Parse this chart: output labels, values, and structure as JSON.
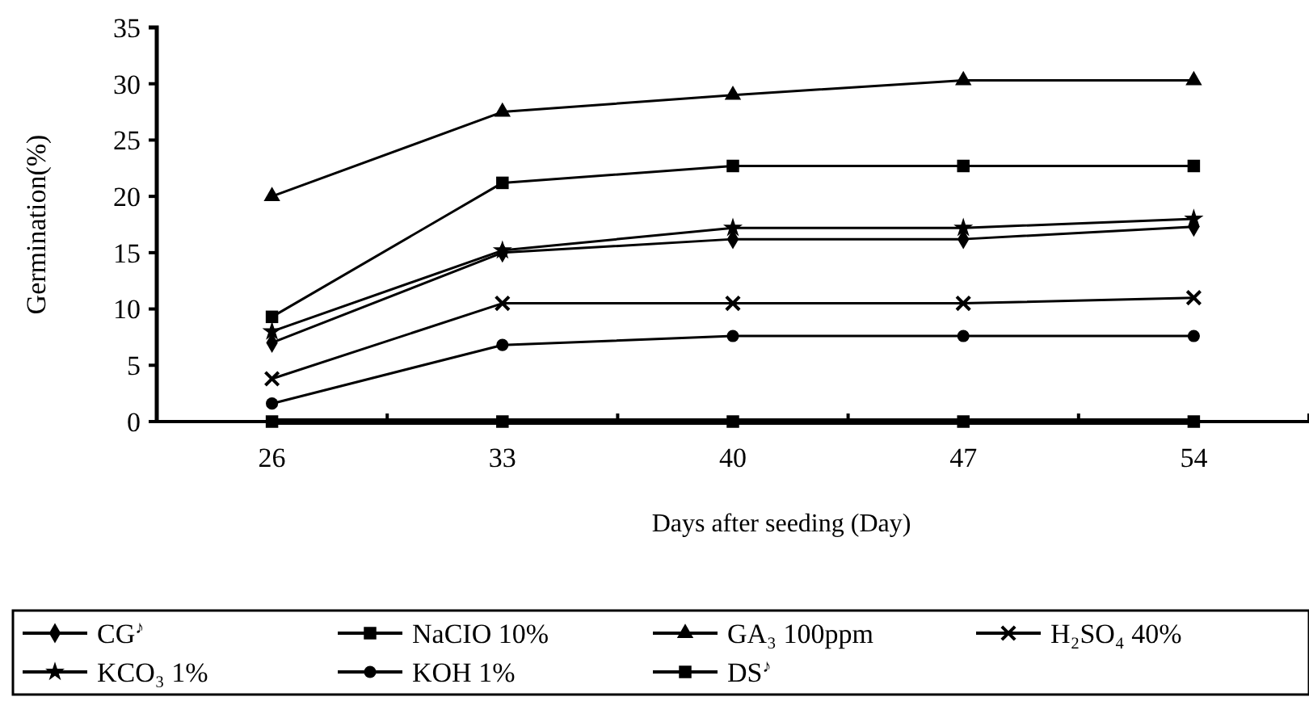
{
  "chart_data": {
    "type": "line",
    "xlabel": "Days after seeding (Day)",
    "ylabel": "Germination(%)",
    "categories": [
      "26",
      "33",
      "40",
      "47",
      "54"
    ],
    "ylim": [
      0,
      35
    ],
    "yticks": [
      0,
      5,
      10,
      15,
      20,
      25,
      30,
      35
    ],
    "grid": false,
    "legend": "bottom",
    "line_style": "solid",
    "series": [
      {
        "name": "CG$^{♪}$",
        "color": "#000000",
        "marker": "diamond",
        "values": [
          7,
          15,
          16.2,
          16.2,
          17.3
        ]
      },
      {
        "name": "NaCIO 10%",
        "color": "#000000",
        "marker": "square",
        "values": [
          9.3,
          21.2,
          22.7,
          22.7,
          22.7
        ]
      },
      {
        "name": "GA₃ 100ppm",
        "color": "#000000",
        "marker": "triangle",
        "values": [
          20,
          27.5,
          29,
          30.3,
          30.3
        ]
      },
      {
        "name": "H₂SO₄ 40%",
        "color": "#000000",
        "marker": "cross",
        "values": [
          3.8,
          10.5,
          10.5,
          10.5,
          11
        ]
      },
      {
        "name": "KCO₃ 1%",
        "color": "#000000",
        "marker": "star",
        "values": [
          8,
          15.2,
          17.2,
          17.2,
          18
        ]
      },
      {
        "name": "KOH 1%",
        "color": "#000000",
        "marker": "circle",
        "values": [
          1.6,
          6.8,
          7.6,
          7.6,
          7.6
        ]
      },
      {
        "name": "DS$^{♪}$",
        "color": "#000000",
        "marker": "square",
        "values": [
          0,
          0,
          0,
          0,
          0
        ]
      }
    ]
  }
}
